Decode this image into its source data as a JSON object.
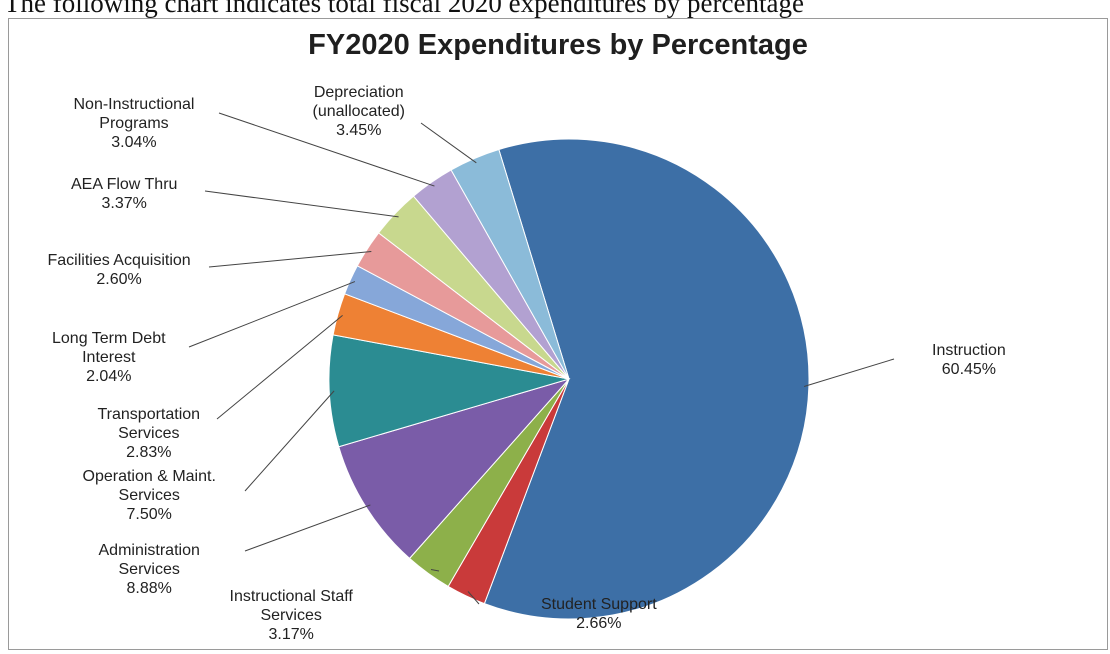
{
  "intro_text": "The following chart indicates total fiscal 2020 expenditures by percentage",
  "chart_data": {
    "type": "pie",
    "title": "FY2020 Expenditures by Percentage",
    "slices": [
      {
        "label": "Instruction",
        "value": 60.45,
        "color": "#3D6FA6"
      },
      {
        "label": "Student Support",
        "value": 2.66,
        "color": "#C93A3A"
      },
      {
        "label": "Instructional Staff\nServices",
        "value": 3.17,
        "color": "#8DB04A"
      },
      {
        "label": "Administration\nServices",
        "value": 8.88,
        "color": "#7A5CA8"
      },
      {
        "label": "Operation & Maint.\nServices",
        "value": 7.5,
        "color": "#2B8C92"
      },
      {
        "label": "Transportation\nServices",
        "value": 2.83,
        "color": "#EE8134"
      },
      {
        "label": "Long Term Debt\nInterest",
        "value": 2.04,
        "color": "#86A7D9"
      },
      {
        "label": "Facilities Acquisition",
        "value": 2.6,
        "color": "#E79A9A"
      },
      {
        "label": "AEA Flow Thru",
        "value": 3.37,
        "color": "#C8D88E"
      },
      {
        "label": "Non-Instructional\nPrograms",
        "value": 3.04,
        "color": "#B2A1D1"
      },
      {
        "label": "Depreciation\n(unallocated)",
        "value": 3.45,
        "color": "#8BBBD9"
      }
    ]
  }
}
